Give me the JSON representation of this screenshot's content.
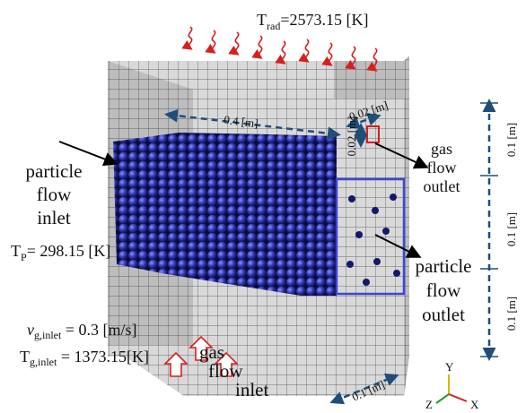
{
  "radiation_temperature": {
    "symbol": "T",
    "subscript": "rad",
    "value": "=2573.15 [K]"
  },
  "dimensions": {
    "length": "0.4 [m]",
    "outlet_width": "0.02 [m]",
    "outlet_height": "0.02 [m]",
    "heights": [
      "0.1 [m]",
      "0.1 [m]",
      "0.1 [m]"
    ],
    "depth": "0.1 [m]"
  },
  "gas_flow_outlet": [
    "gas",
    "flow",
    "outlet"
  ],
  "particle_flow_inlet": [
    "particle",
    "flow",
    "inlet"
  ],
  "particle_temperature": {
    "symbol": "T",
    "subscript": "P",
    "value": "= 298.15 [K]"
  },
  "particle_flow_outlet": [
    "particle",
    "flow",
    "outlet"
  ],
  "gas_velocity": {
    "symbol": "v",
    "subscript": "g,inlet",
    "value": " = 0.3 [m/s]"
  },
  "gas_temperature": {
    "symbol": "T",
    "subscript": "g,inlet",
    "value": " = 1373.15[K]"
  },
  "gas_flow_inlet": [
    "gas",
    "flow",
    "inlet"
  ],
  "axes": {
    "y": "Y",
    "z": "Z",
    "x": "X"
  }
}
